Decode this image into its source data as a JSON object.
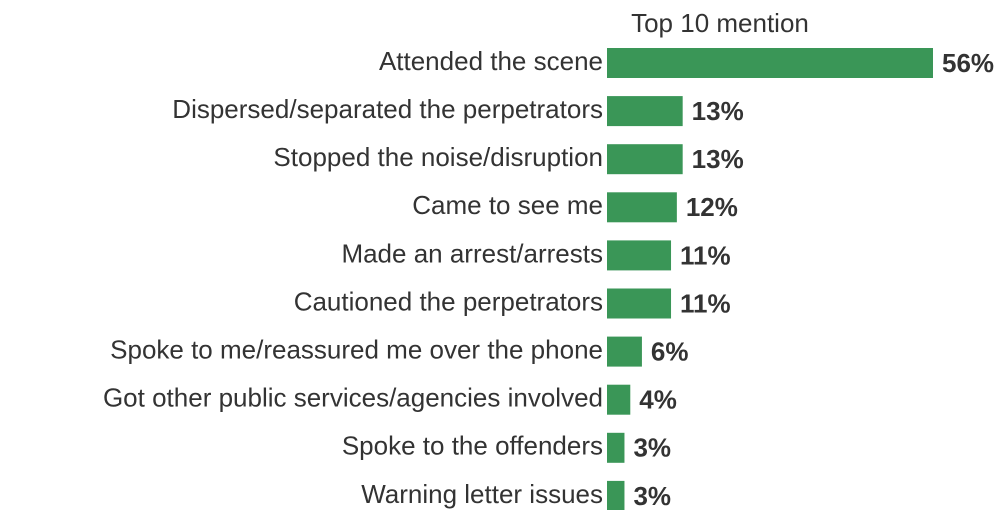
{
  "chart_data": {
    "type": "bar",
    "orientation": "horizontal",
    "title": "Top 10 mention",
    "categories": [
      "Attended the scene",
      "Dispersed/separated the perpetrators",
      "Stopped the noise/disruption",
      "Came to see me",
      "Made an arrest/arrests",
      "Cautioned the perpetrators",
      "Spoke to me/reassured me over the phone",
      "Got other public services/agencies involved",
      "Spoke to the offenders",
      "Warning letter issues"
    ],
    "values": [
      56,
      13,
      13,
      12,
      11,
      11,
      6,
      4,
      3,
      3
    ],
    "value_labels": [
      "56%",
      "13%",
      "13%",
      "12%",
      "11%",
      "11%",
      "6%",
      "4%",
      "3%",
      "3%"
    ],
    "color": "#3a9657"
  }
}
